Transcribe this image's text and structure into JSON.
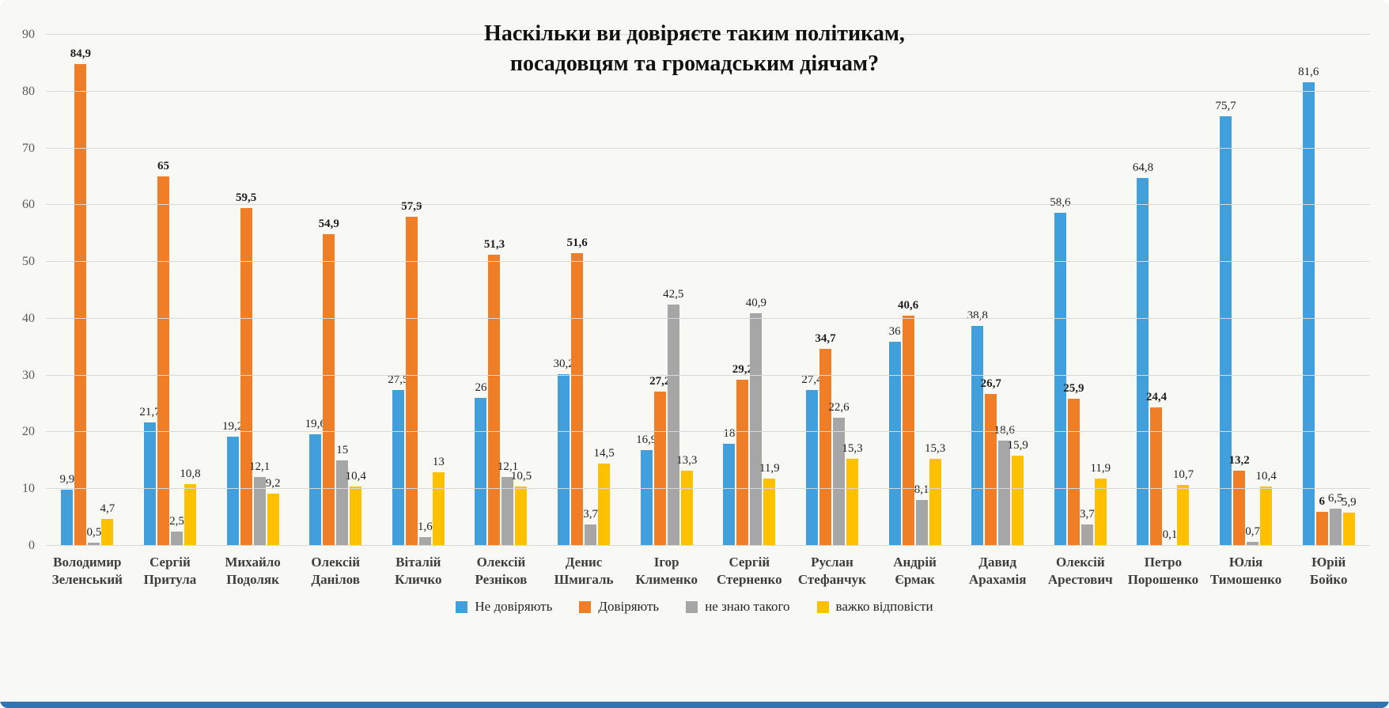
{
  "chart_data": {
    "type": "bar",
    "title_lines": [
      "Наскільки ви довіряєте таким політикам,",
      "посадовцям та громадським діячам?"
    ],
    "categories": [
      [
        "Володимир",
        "Зеленський"
      ],
      [
        "Сергій",
        "Притула"
      ],
      [
        "Михайло",
        "Подоляк"
      ],
      [
        "Олексій",
        "Данілов"
      ],
      [
        "Віталій",
        "Кличко"
      ],
      [
        "Олексій",
        "Резніков"
      ],
      [
        "Денис",
        "Шмигаль"
      ],
      [
        "Ігор",
        "Клименко"
      ],
      [
        "Сергій",
        "Стерненко"
      ],
      [
        "Руслан",
        "Стефанчук"
      ],
      [
        "Андрій",
        "Єрмак"
      ],
      [
        "Давид",
        "Арахамія"
      ],
      [
        "Олексій",
        "Арестович"
      ],
      [
        "Петро",
        "Порошенко"
      ],
      [
        "Юлія",
        "Тимошенко"
      ],
      [
        "Юрій",
        "Бойко"
      ]
    ],
    "series": [
      {
        "name": "Не довіряють",
        "color": "#41A0DC",
        "bold_labels": false,
        "values": [
          "9,9",
          "21,7",
          "19,2",
          "19,6",
          "27,5",
          "26",
          "30,2",
          "16,9",
          "18",
          "27,4",
          "36",
          "38,8",
          "58,6",
          "64,8",
          "75,7",
          "81,6"
        ]
      },
      {
        "name": "Довіряють",
        "color": "#F07E26",
        "bold_labels": true,
        "values": [
          "84,9",
          "65",
          "59,5",
          "54,9",
          "57,9",
          "51,3",
          "51,6",
          "27,2",
          "29,2",
          "34,7",
          "40,6",
          "26,7",
          "25,9",
          "24,4",
          "13,2",
          "6"
        ]
      },
      {
        "name": "не знаю такого",
        "color": "#A6A6A6",
        "bold_labels": false,
        "values": [
          "0,5",
          "2,5",
          "12,1",
          "15",
          "1,6",
          "12,1",
          "3,7",
          "42,5",
          "40,9",
          "22,6",
          "8,1",
          "18,6",
          "3,7",
          "0,1",
          "0,7",
          "6,5"
        ]
      },
      {
        "name": "важко відповісти",
        "color": "#FFC000",
        "bold_labels": false,
        "values": [
          "4,7",
          "10,8",
          "9,2",
          "10,4",
          "13",
          "10,5",
          "14,5",
          "13,3",
          "11,9",
          "15,3",
          "15,3",
          "15,9",
          "11,9",
          "10,7",
          "10,4",
          "5,9"
        ]
      }
    ],
    "ylim": [
      0,
      90
    ],
    "yticks": [
      0,
      10,
      20,
      30,
      40,
      50,
      60,
      70,
      80,
      90
    ],
    "grid": true,
    "legend_position": "bottom"
  },
  "colors": {
    "background": "#f8f8f4",
    "gridline": "#d9d9d9",
    "accent_strip": "#2E75B6"
  }
}
